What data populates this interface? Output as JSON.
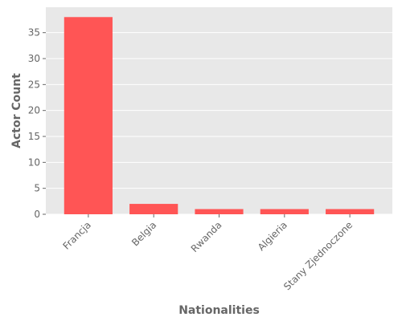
{
  "chart_data": {
    "type": "bar",
    "title": "",
    "xlabel": "Nationalities",
    "ylabel": "Actor Count",
    "categories": [
      "Francja",
      "Belgia",
      "Rwanda",
      "Algieria",
      "Stany Zjednoczone"
    ],
    "values": [
      38,
      2,
      1,
      1,
      1
    ],
    "ylim": [
      0,
      39.9
    ],
    "yticks": [
      0,
      5,
      10,
      15,
      20,
      25,
      30,
      35
    ],
    "grid": true,
    "legend": "none",
    "colors": {
      "bar": "#FF5555",
      "plot_background": "#E8E8E8",
      "grid": "#FFFFFF",
      "text": "#666666"
    }
  }
}
